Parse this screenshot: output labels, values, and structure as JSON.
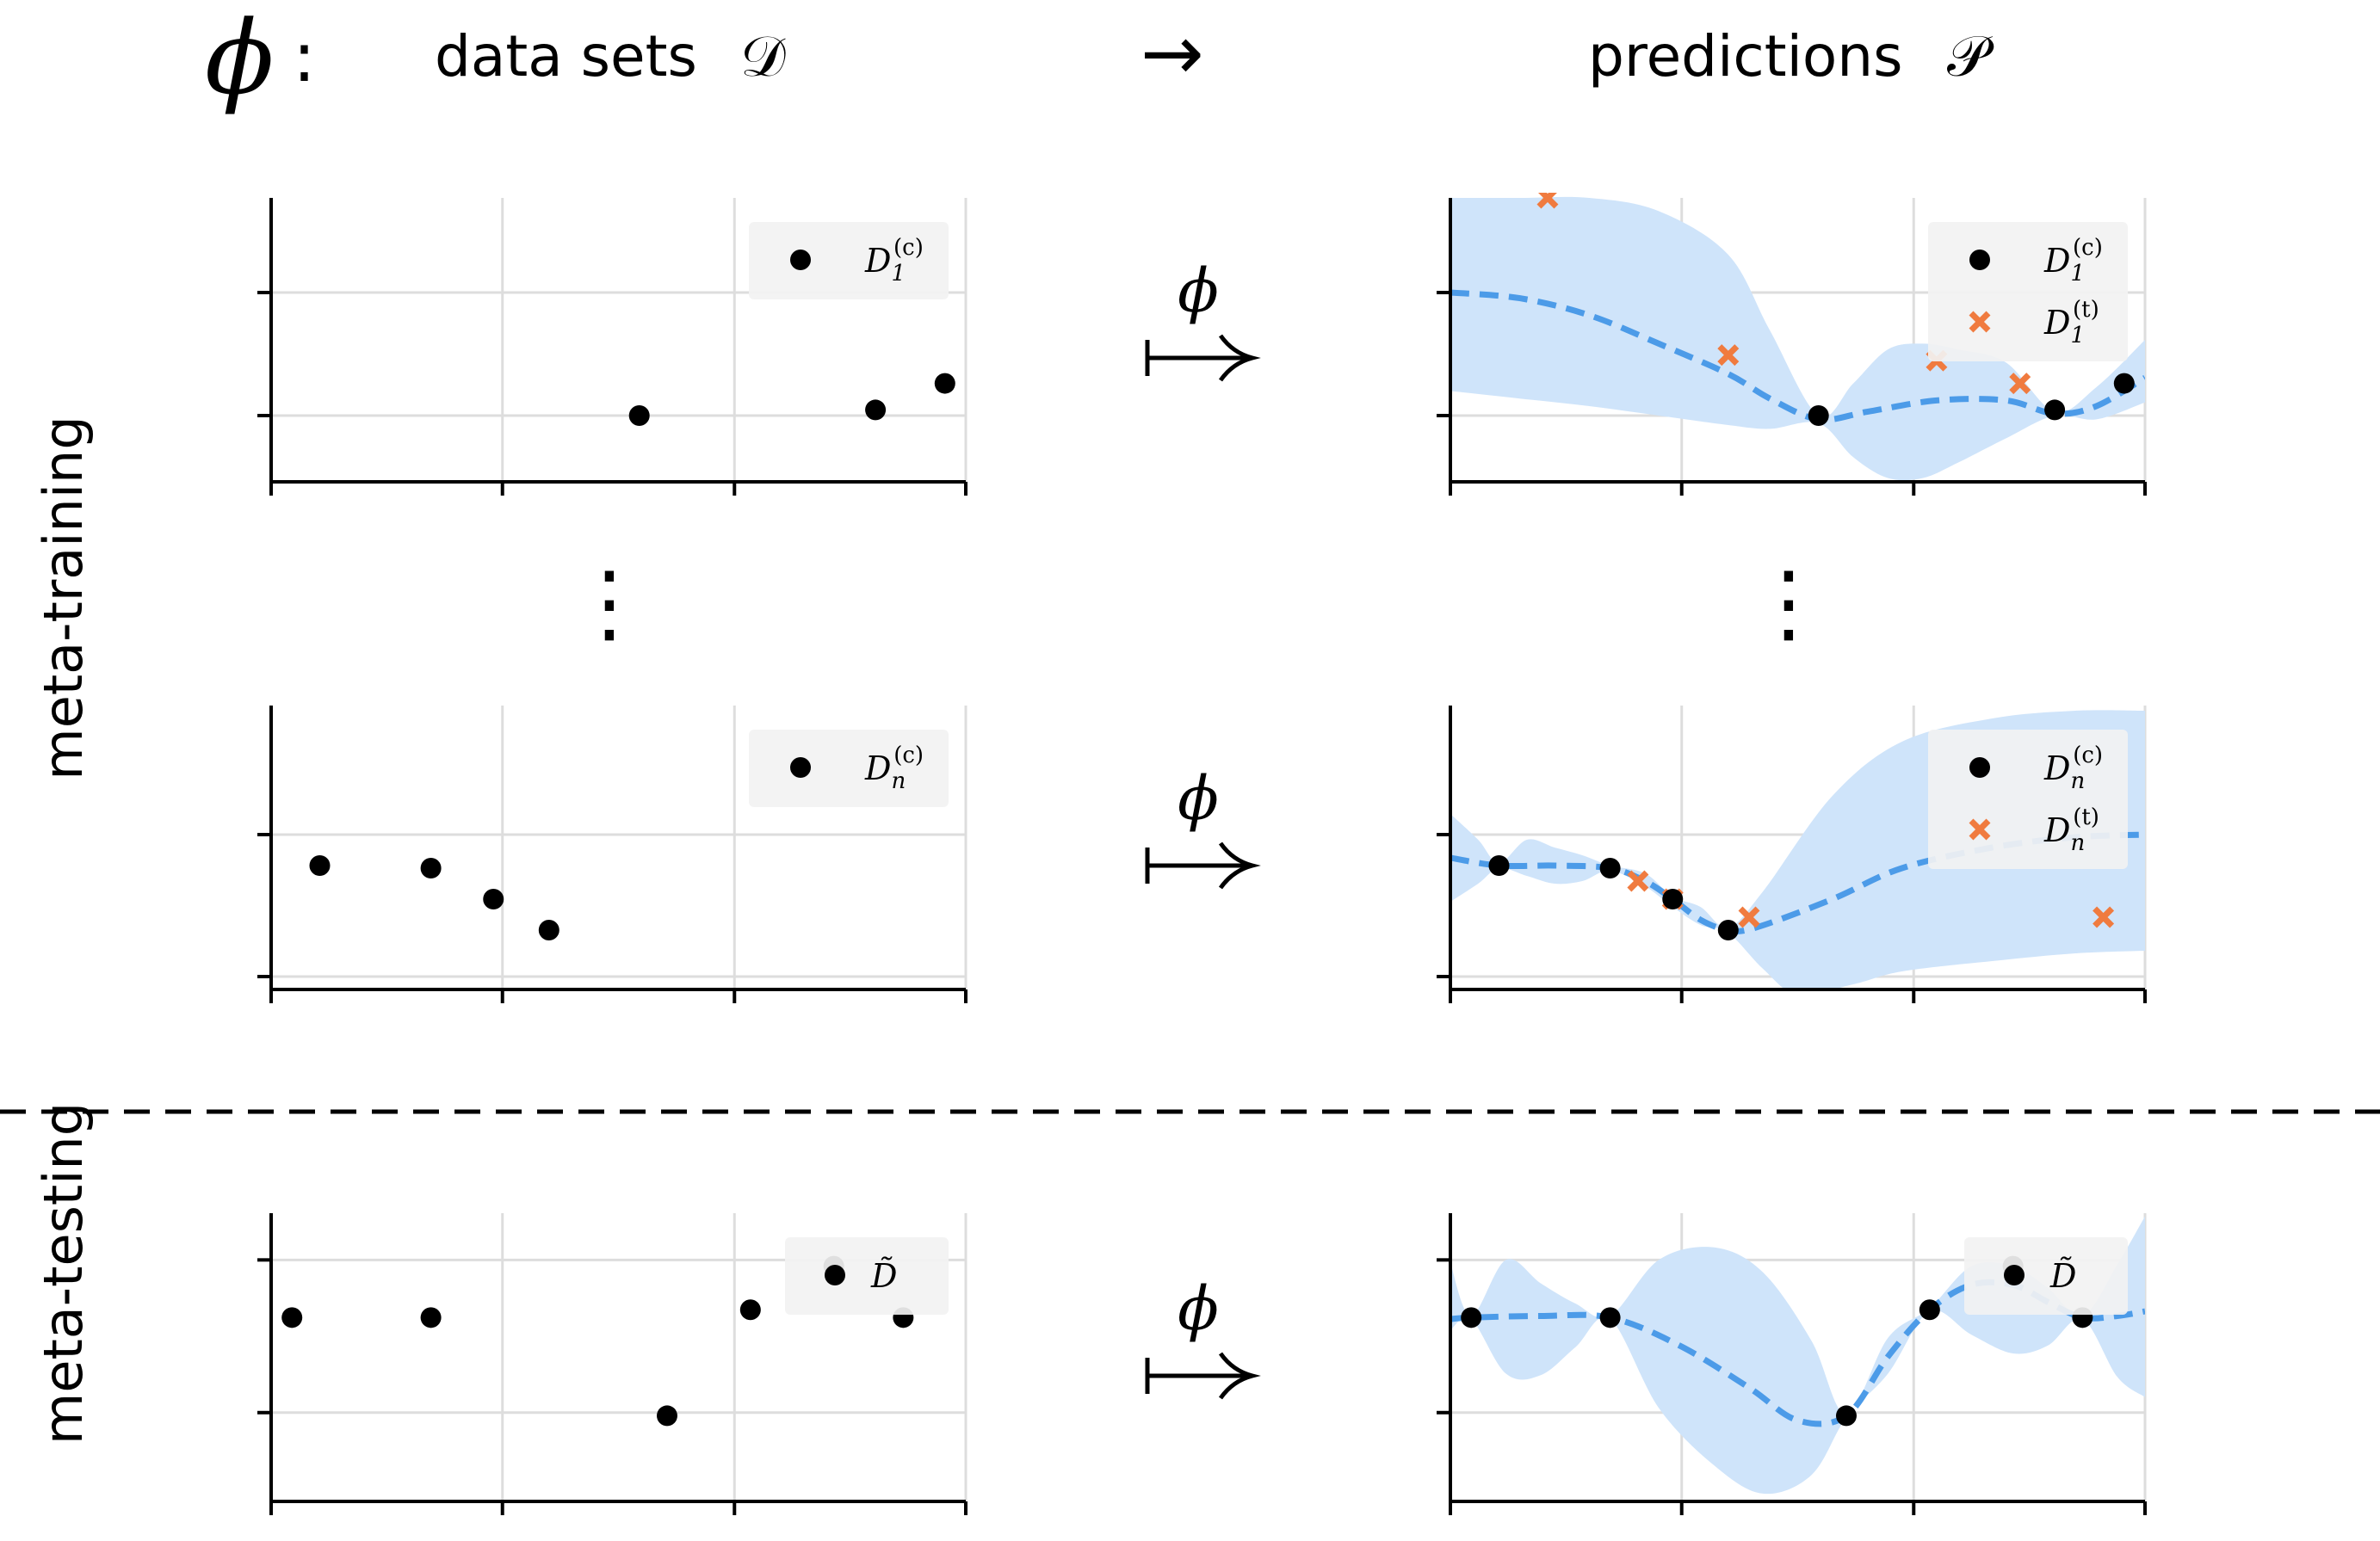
{
  "header": {
    "phi_symbol": "ϕ",
    "phi_colon": ":",
    "datasets_label": "data sets",
    "datasets_symbol": "𝒟",
    "arrow": "→",
    "predictions_label": "predictions",
    "predictions_symbol": "𝒫"
  },
  "side_labels": {
    "meta_training": "meta-training",
    "meta_testing": "meta-testing"
  },
  "mapsto": {
    "symbol": "ϕ"
  },
  "ellipsis": "⋮",
  "colors": {
    "context": "#000000",
    "target": "#f07b3f",
    "mean": "#4c9be8",
    "band": "#cfe4fa",
    "grid": "#dddddd",
    "legend_bg": "#f2f2f2"
  },
  "chart_data": [
    {
      "type": "scatter",
      "panel": "row1-data",
      "legend": [
        {
          "base": "D",
          "sub": "1",
          "sup": "(c)",
          "marker": "dot"
        }
      ],
      "context": [
        [
          0.53,
          0.05
        ],
        [
          0.87,
          0.08
        ],
        [
          0.97,
          0.22
        ]
      ],
      "xlim": [
        0,
        1
      ],
      "ylim": [
        -0.3,
        1.2
      ],
      "xticks": [
        0,
        0.333,
        0.667,
        1
      ],
      "yticks": [
        0.05,
        0.7
      ],
      "grid": true
    },
    {
      "type": "line",
      "panel": "row1-pred",
      "legend": [
        {
          "base": "D",
          "sub": "1",
          "sup": "(c)",
          "marker": "dot"
        },
        {
          "base": "D",
          "sub": "1",
          "sup": "(t)",
          "marker": "cross"
        }
      ],
      "context": [
        [
          0.53,
          0.05
        ],
        [
          0.87,
          0.08
        ],
        [
          0.97,
          0.22
        ]
      ],
      "target": [
        [
          0.14,
          1.2
        ],
        [
          0.4,
          0.37
        ],
        [
          0.7,
          0.34
        ],
        [
          0.82,
          0.22
        ]
      ],
      "mean": [
        [
          0,
          0.7
        ],
        [
          0.1,
          0.67
        ],
        [
          0.2,
          0.58
        ],
        [
          0.3,
          0.43
        ],
        [
          0.4,
          0.27
        ],
        [
          0.46,
          0.14
        ],
        [
          0.53,
          0.03
        ],
        [
          0.6,
          0.07
        ],
        [
          0.7,
          0.13
        ],
        [
          0.8,
          0.13
        ],
        [
          0.87,
          0.06
        ],
        [
          0.93,
          0.1
        ],
        [
          1,
          0.25
        ]
      ],
      "upper": [
        [
          0,
          1.2
        ],
        [
          0.1,
          1.2
        ],
        [
          0.2,
          1.2
        ],
        [
          0.3,
          1.13
        ],
        [
          0.4,
          0.9
        ],
        [
          0.46,
          0.5
        ],
        [
          0.53,
          0.05
        ],
        [
          0.58,
          0.22
        ],
        [
          0.63,
          0.4
        ],
        [
          0.68,
          0.43
        ],
        [
          0.73,
          0.4
        ],
        [
          0.8,
          0.33
        ],
        [
          0.87,
          0.07
        ],
        [
          0.93,
          0.2
        ],
        [
          1,
          0.45
        ]
      ],
      "lower": [
        [
          0,
          0.18
        ],
        [
          0.1,
          0.14
        ],
        [
          0.2,
          0.1
        ],
        [
          0.3,
          0.05
        ],
        [
          0.4,
          0.0
        ],
        [
          0.46,
          -0.02
        ],
        [
          0.53,
          0.01
        ],
        [
          0.58,
          -0.17
        ],
        [
          0.63,
          -0.28
        ],
        [
          0.68,
          -0.28
        ],
        [
          0.73,
          -0.2
        ],
        [
          0.8,
          -0.07
        ],
        [
          0.87,
          0.05
        ],
        [
          0.93,
          0.03
        ],
        [
          1,
          0.12
        ]
      ],
      "xlim": [
        0,
        1
      ],
      "ylim": [
        -0.3,
        1.2
      ],
      "xticks": [
        0,
        0.333,
        0.667,
        1
      ],
      "yticks": [
        0.05,
        0.7
      ],
      "grid": true
    },
    {
      "type": "scatter",
      "panel": "rown-data",
      "legend": [
        {
          "base": "D",
          "sub": "n",
          "sup": "(c)",
          "marker": "dot"
        }
      ],
      "context": [
        [
          0.07,
          0.38
        ],
        [
          0.23,
          0.37
        ],
        [
          0.32,
          0.25
        ],
        [
          0.4,
          0.13
        ]
      ],
      "xlim": [
        0,
        1
      ],
      "ylim": [
        -0.1,
        1.0
      ],
      "xticks": [
        0,
        0.333,
        0.667,
        1
      ],
      "yticks": [
        -0.05,
        0.5
      ],
      "grid": true
    },
    {
      "type": "line",
      "panel": "rown-pred",
      "legend": [
        {
          "base": "D",
          "sub": "n",
          "sup": "(c)",
          "marker": "dot"
        },
        {
          "base": "D",
          "sub": "n",
          "sup": "(t)",
          "marker": "cross"
        }
      ],
      "context": [
        [
          0.07,
          0.38
        ],
        [
          0.23,
          0.37
        ],
        [
          0.32,
          0.25
        ],
        [
          0.4,
          0.13
        ]
      ],
      "target": [
        [
          0.27,
          0.32
        ],
        [
          0.32,
          0.25
        ],
        [
          0.43,
          0.18
        ],
        [
          0.94,
          0.18
        ]
      ],
      "mean": [
        [
          0,
          0.41
        ],
        [
          0.07,
          0.38
        ],
        [
          0.15,
          0.38
        ],
        [
          0.23,
          0.37
        ],
        [
          0.28,
          0.32
        ],
        [
          0.32,
          0.25
        ],
        [
          0.36,
          0.17
        ],
        [
          0.4,
          0.13
        ],
        [
          0.44,
          0.14
        ],
        [
          0.55,
          0.25
        ],
        [
          0.65,
          0.37
        ],
        [
          0.78,
          0.45
        ],
        [
          0.9,
          0.49
        ],
        [
          1,
          0.5
        ]
      ],
      "upper": [
        [
          0,
          0.58
        ],
        [
          0.04,
          0.48
        ],
        [
          0.07,
          0.39
        ],
        [
          0.11,
          0.48
        ],
        [
          0.15,
          0.45
        ],
        [
          0.19,
          0.42
        ],
        [
          0.23,
          0.38
        ],
        [
          0.28,
          0.35
        ],
        [
          0.32,
          0.26
        ],
        [
          0.36,
          0.22
        ],
        [
          0.4,
          0.14
        ],
        [
          0.45,
          0.28
        ],
        [
          0.55,
          0.65
        ],
        [
          0.65,
          0.86
        ],
        [
          0.78,
          0.95
        ],
        [
          0.9,
          0.98
        ],
        [
          1,
          0.98
        ]
      ],
      "lower": [
        [
          0,
          0.24
        ],
        [
          0.04,
          0.31
        ],
        [
          0.07,
          0.37
        ],
        [
          0.11,
          0.34
        ],
        [
          0.15,
          0.31
        ],
        [
          0.19,
          0.32
        ],
        [
          0.23,
          0.36
        ],
        [
          0.28,
          0.3
        ],
        [
          0.32,
          0.22
        ],
        [
          0.36,
          0.15
        ],
        [
          0.4,
          0.12
        ],
        [
          0.45,
          -0.02
        ],
        [
          0.5,
          -0.12
        ],
        [
          0.58,
          -0.08
        ],
        [
          0.65,
          -0.03
        ],
        [
          0.78,
          0.01
        ],
        [
          0.9,
          0.04
        ],
        [
          1,
          0.05
        ]
      ],
      "xlim": [
        0,
        1
      ],
      "ylim": [
        -0.1,
        1.0
      ],
      "xticks": [
        0,
        0.333,
        0.667,
        1
      ],
      "yticks": [
        -0.05,
        0.5
      ],
      "grid": true
    },
    {
      "type": "scatter",
      "panel": "test-data",
      "legend": [
        {
          "base": "D̃",
          "sub": "",
          "sup": "",
          "marker": "dot"
        }
      ],
      "context": [
        [
          0.03,
          0.63
        ],
        [
          0.23,
          0.63
        ],
        [
          0.57,
          0.0
        ],
        [
          0.69,
          0.68
        ],
        [
          0.81,
          0.96
        ],
        [
          0.91,
          0.63
        ]
      ],
      "xlim": [
        0,
        1
      ],
      "ylim": [
        -0.55,
        1.3
      ],
      "xticks": [
        0,
        0.333,
        0.667,
        1
      ],
      "yticks": [
        0.02,
        1.0
      ],
      "grid": true
    },
    {
      "type": "line",
      "panel": "test-pred",
      "legend": [
        {
          "base": "D̃",
          "sub": "",
          "sup": "",
          "marker": "dot"
        }
      ],
      "context": [
        [
          0.03,
          0.63
        ],
        [
          0.23,
          0.63
        ],
        [
          0.57,
          0.0
        ],
        [
          0.69,
          0.68
        ],
        [
          0.81,
          0.96
        ],
        [
          0.91,
          0.63
        ]
      ],
      "target": [],
      "mean": [
        [
          0,
          0.62
        ],
        [
          0.03,
          0.63
        ],
        [
          0.13,
          0.64
        ],
        [
          0.23,
          0.63
        ],
        [
          0.33,
          0.45
        ],
        [
          0.43,
          0.18
        ],
        [
          0.5,
          -0.03
        ],
        [
          0.57,
          0.0
        ],
        [
          0.63,
          0.38
        ],
        [
          0.69,
          0.68
        ],
        [
          0.75,
          0.84
        ],
        [
          0.81,
          0.84
        ],
        [
          0.86,
          0.73
        ],
        [
          0.91,
          0.63
        ],
        [
          0.96,
          0.64
        ],
        [
          1,
          0.67
        ]
      ],
      "upper": [
        [
          0,
          0.98
        ],
        [
          0.03,
          0.64
        ],
        [
          0.08,
          1.0
        ],
        [
          0.13,
          0.85
        ],
        [
          0.18,
          0.72
        ],
        [
          0.23,
          0.64
        ],
        [
          0.3,
          1.0
        ],
        [
          0.38,
          1.08
        ],
        [
          0.45,
          0.92
        ],
        [
          0.52,
          0.48
        ],
        [
          0.57,
          0.01
        ],
        [
          0.63,
          0.5
        ],
        [
          0.69,
          0.69
        ],
        [
          0.75,
          0.96
        ],
        [
          0.81,
          0.96
        ],
        [
          0.86,
          0.82
        ],
        [
          0.91,
          0.64
        ],
        [
          0.96,
          0.97
        ],
        [
          1,
          1.28
        ]
      ],
      "lower": [
        [
          0,
          0.55
        ],
        [
          0.03,
          0.62
        ],
        [
          0.08,
          0.27
        ],
        [
          0.13,
          0.26
        ],
        [
          0.18,
          0.44
        ],
        [
          0.23,
          0.62
        ],
        [
          0.3,
          0.05
        ],
        [
          0.38,
          -0.32
        ],
        [
          0.45,
          -0.5
        ],
        [
          0.52,
          -0.38
        ],
        [
          0.57,
          -0.01
        ],
        [
          0.63,
          0.27
        ],
        [
          0.69,
          0.67
        ],
        [
          0.75,
          0.52
        ],
        [
          0.81,
          0.4
        ],
        [
          0.86,
          0.45
        ],
        [
          0.91,
          0.62
        ],
        [
          0.96,
          0.25
        ],
        [
          1,
          0.12
        ]
      ],
      "xlim": [
        0,
        1
      ],
      "ylim": [
        -0.55,
        1.3
      ],
      "xticks": [
        0,
        0.333,
        0.667,
        1
      ],
      "yticks": [
        0.02,
        1.0
      ],
      "grid": true
    }
  ]
}
